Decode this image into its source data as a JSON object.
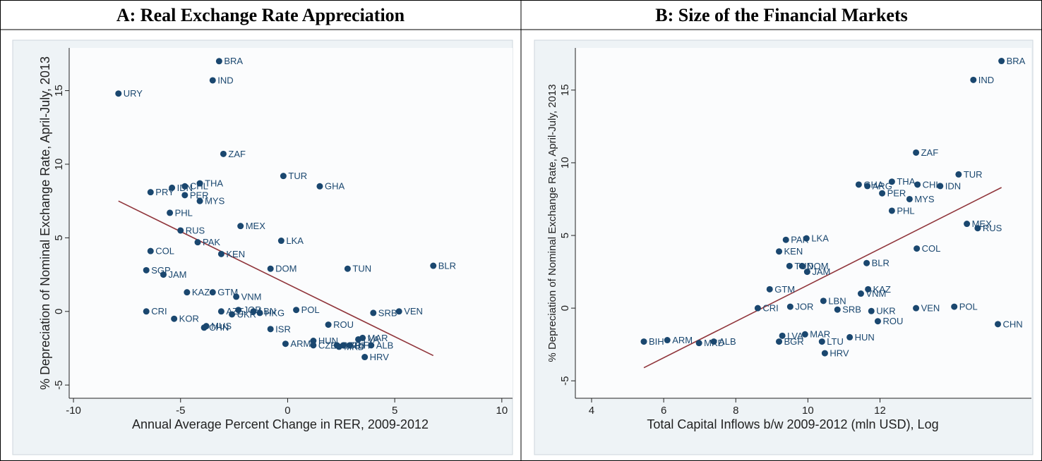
{
  "chart_data": [
    {
      "type": "scatter",
      "title": "A: Real Exchange Rate Appreciation",
      "xlabel": "Annual Average Percent Change in RER, 2009-2012",
      "ylabel": "% Depreciation of Nominal Exchange Rate, April-July, 2013",
      "xlim": [
        -10.2,
        10.5
      ],
      "ylim": [
        -5.9,
        17.9
      ],
      "xticks": [
        -10,
        -5,
        0,
        5,
        10
      ],
      "yticks": [
        -5,
        0,
        5,
        10,
        15
      ],
      "color": "#1a476f",
      "labels": [
        "BRA",
        "IND",
        "URY",
        "ZAF",
        "TUR",
        "GHA",
        "THA",
        "CHL",
        "IDN",
        "PRY",
        "PER",
        "MYS",
        "PHL",
        "MEX",
        "RUS",
        "LKA",
        "PAK",
        "KEN",
        "COL",
        "DOM",
        "TUN",
        "BLR",
        "SGP",
        "JAM",
        "KAZ",
        "GTM",
        "VNM",
        "CRI",
        "AZE",
        "JOR",
        "UKR",
        "LBN",
        "HKG",
        "POL",
        "SRB",
        "VEN",
        "KOR",
        "MUS",
        "CHN",
        "ISR",
        "ROU",
        "MAR",
        "LVA",
        "ARM",
        "HUN",
        "CZE",
        "BGR",
        "LTU",
        "MKD",
        "BIH",
        "ALB",
        "HRV"
      ],
      "x": [
        -3.2,
        -3.5,
        -7.9,
        -3.0,
        -0.2,
        1.5,
        -4.1,
        -4.8,
        -5.4,
        -6.4,
        -4.8,
        -4.1,
        -5.5,
        -2.2,
        -5.0,
        -0.3,
        -4.2,
        -3.1,
        -6.4,
        -0.8,
        2.8,
        6.8,
        -6.6,
        -5.8,
        -4.7,
        -3.5,
        -2.4,
        -6.6,
        -3.1,
        -2.3,
        -2.6,
        -1.6,
        -1.3,
        0.4,
        4.0,
        5.2,
        -5.3,
        -3.8,
        -3.9,
        -0.8,
        1.9,
        3.5,
        3.3,
        -0.1,
        1.2,
        1.2,
        2.3,
        2.6,
        2.4,
        2.9,
        3.9,
        3.6
      ],
      "y": [
        17.0,
        15.7,
        14.8,
        10.7,
        9.2,
        8.5,
        8.7,
        8.5,
        8.4,
        8.1,
        7.9,
        7.5,
        6.7,
        5.8,
        5.5,
        4.8,
        4.7,
        3.9,
        4.1,
        2.9,
        2.9,
        3.1,
        2.8,
        2.5,
        1.3,
        1.3,
        1.0,
        0.0,
        0.0,
        0.1,
        -0.2,
        0.0,
        -0.1,
        0.1,
        -0.1,
        0.0,
        -0.5,
        -1.0,
        -1.1,
        -1.2,
        -0.9,
        -1.8,
        -1.9,
        -2.2,
        -2.0,
        -2.3,
        -2.3,
        -2.3,
        -2.4,
        -2.3,
        -2.3,
        -3.1
      ],
      "trend": {
        "x": [
          -7.9,
          6.8
        ],
        "y": [
          7.5,
          -3.0
        ],
        "color": "#90353b"
      }
    },
    {
      "type": "scatter",
      "title": "B: Size of the Financial Markets",
      "xlabel": "Total Capital Inflows b/w 2009-2012 (mln USD), Log",
      "ylabel": "% Depreciation of Nominal Exchange Rate, April-July, 2013",
      "xlim": [
        3.55,
        16.2
      ],
      "ylim": [
        -6.2,
        17.9
      ],
      "xticks": [
        4,
        6,
        8,
        10,
        12
      ],
      "yticks": [
        -5,
        0,
        5,
        10,
        15
      ],
      "color": "#1a476f",
      "labels": [
        "BRA",
        "IND",
        "ZAF",
        "TUR",
        "THA",
        "CHL",
        "IDN",
        "GHA",
        "ARG",
        "PER",
        "MYS",
        "PHL",
        "MEX",
        "RUS",
        "PAK",
        "LKA",
        "KEN",
        "COL",
        "TUN",
        "DOM",
        "JAM",
        "BLR",
        "KAZ",
        "VNM",
        "GTM",
        "CRI",
        "JOR",
        "SRB",
        "LBN",
        "UKR",
        "VEN",
        "POL",
        "CHN",
        "ROU",
        "HUN",
        "MAR",
        "LVA",
        "BGR",
        "LTU",
        "HRV",
        "BIH",
        "ARM",
        "MKD",
        "ALB"
      ],
      "x": [
        15.37,
        14.59,
        13.0,
        14.18,
        12.33,
        13.04,
        13.67,
        11.41,
        11.65,
        12.06,
        12.82,
        12.33,
        14.41,
        14.71,
        9.39,
        9.96,
        9.2,
        13.02,
        9.49,
        9.84,
        9.98,
        11.63,
        11.67,
        11.47,
        8.94,
        8.61,
        9.51,
        10.82,
        10.43,
        11.76,
        13.0,
        14.06,
        15.27,
        11.94,
        11.16,
        9.92,
        9.29,
        9.2,
        10.39,
        10.47,
        5.45,
        6.1,
        6.98,
        7.39
      ],
      "y": [
        17.0,
        15.7,
        10.7,
        9.2,
        8.7,
        8.5,
        8.4,
        8.5,
        8.4,
        7.9,
        7.5,
        6.7,
        5.8,
        5.5,
        4.7,
        4.8,
        3.9,
        4.1,
        2.9,
        2.9,
        2.5,
        3.1,
        1.3,
        1.0,
        1.3,
        0.0,
        0.1,
        -0.1,
        0.5,
        -0.2,
        0.0,
        0.1,
        -1.1,
        -0.9,
        -2.0,
        -1.8,
        -1.9,
        -2.3,
        -2.3,
        -3.1,
        -2.3,
        -2.2,
        -2.4,
        -2.3
      ],
      "trend": {
        "x": [
          5.45,
          15.37
        ],
        "y": [
          -4.1,
          8.3
        ],
        "color": "#90353b"
      }
    }
  ]
}
